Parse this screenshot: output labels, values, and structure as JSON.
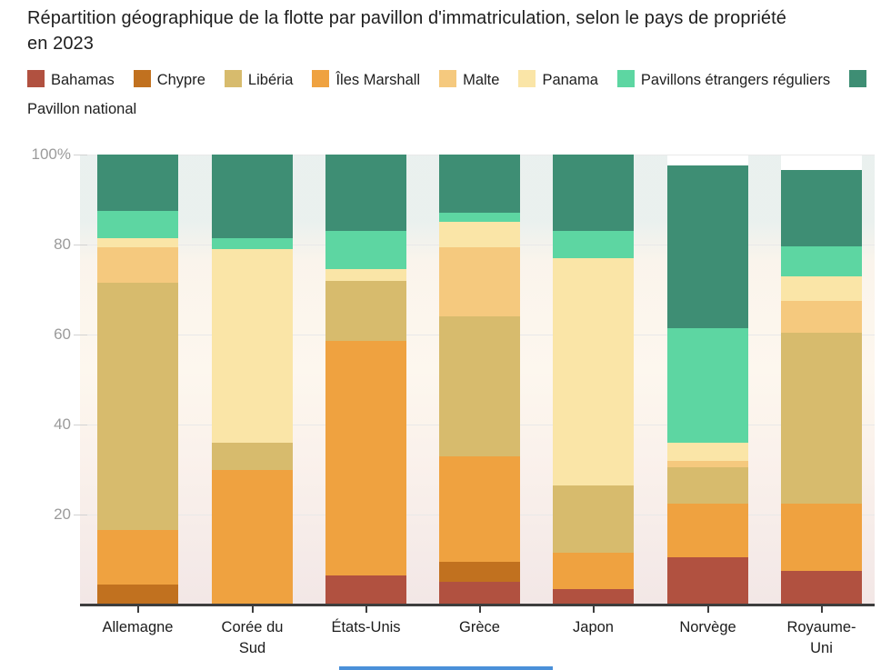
{
  "title": "Répartition géographique de la flotte par pavillon d'immatriculation, selon le pays de propriété en 2023",
  "legend": {
    "items": [
      {
        "label": "Bahamas",
        "color": "#b15140"
      },
      {
        "label": "Chypre",
        "color": "#c1711f"
      },
      {
        "label": "Libéria",
        "color": "#d7bb6d"
      },
      {
        "label": "Îles Marshall",
        "color": "#efa240"
      },
      {
        "label": "Malte",
        "color": "#f5c97e"
      },
      {
        "label": "Panama",
        "color": "#fae5a7"
      },
      {
        "label": "Pavillons étrangers réguliers",
        "color": "#5dd6a2"
      },
      {
        "label": "Pavillon national",
        "color": "#3e8e74"
      }
    ]
  },
  "chart_data": {
    "type": "bar",
    "subtype": "stacked-percentage-column",
    "categories": [
      "Allemagne",
      "Corée du Sud",
      "États-Unis",
      "Grèce",
      "Japon",
      "Norvège",
      "Royaume-Uni"
    ],
    "series": [
      {
        "name": "Bahamas",
        "color": "#b15140",
        "values": [
          0,
          0,
          6.5,
          5,
          3.5,
          10.5,
          7.5
        ]
      },
      {
        "name": "Chypre",
        "color": "#c1711f",
        "values": [
          4.5,
          0,
          0,
          4.5,
          0,
          0,
          0
        ]
      },
      {
        "name": "Îles Marshall",
        "color": "#efa240",
        "values": [
          12,
          30,
          52,
          23.5,
          8,
          12,
          15
        ]
      },
      {
        "name": "Libéria",
        "color": "#d7bb6d",
        "values": [
          55,
          6,
          13.5,
          31,
          15,
          8,
          38
        ]
      },
      {
        "name": "Malte",
        "color": "#f5c97e",
        "values": [
          8,
          0,
          0,
          15.5,
          0,
          1.5,
          7
        ]
      },
      {
        "name": "Panama",
        "color": "#fae5a7",
        "values": [
          2,
          43,
          2.5,
          5.5,
          50.5,
          4,
          5.5
        ]
      },
      {
        "name": "Pavillons étrangers réguliers",
        "color": "#5dd6a2",
        "values": [
          6,
          2.5,
          8.5,
          2,
          6,
          25.5,
          6.5
        ]
      },
      {
        "name": "Pavillon national",
        "color": "#3e8e74",
        "values": [
          12.5,
          18.5,
          17,
          13,
          17,
          36,
          17
        ]
      }
    ],
    "stack_order": "bottom-to-top as listed in series",
    "column_totals": [
      100,
      100,
      100,
      100,
      100,
      97.5,
      96.5
    ],
    "ylabel": "",
    "xlabel": "",
    "ylim": [
      0,
      100
    ],
    "grid": "horizontal",
    "legend_position": "top",
    "yticks": [
      {
        "value": 20,
        "label": "20"
      },
      {
        "value": 40,
        "label": "40"
      },
      {
        "value": 60,
        "label": "60"
      },
      {
        "value": 80,
        "label": "80"
      },
      {
        "value": 100,
        "label": "100%"
      }
    ]
  }
}
